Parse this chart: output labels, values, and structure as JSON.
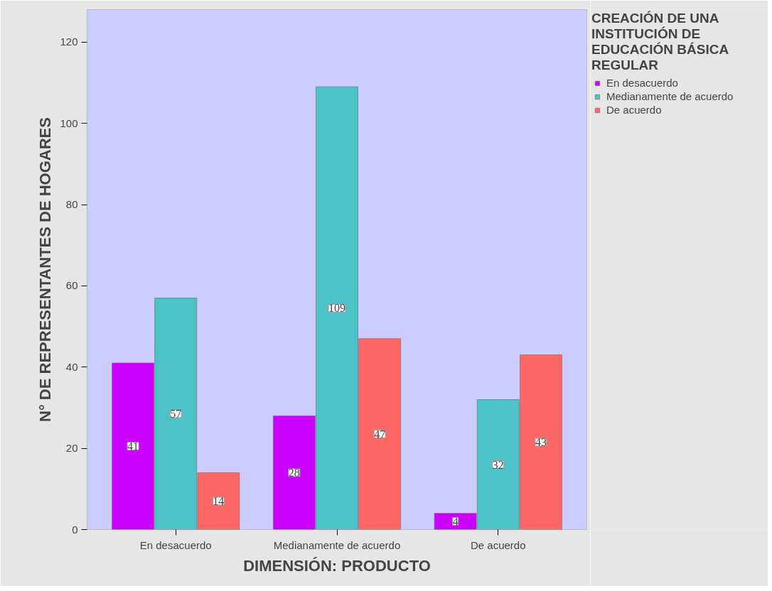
{
  "chart_data": {
    "type": "bar",
    "xlabel": "DIMENSIÓN: PRODUCTO",
    "ylabel": "N° DE REPRESENTANTES DE HOGARES",
    "legend_title": "CREACIÓN DE UNA INSTITUCIÓN DE EDUCACIÓN BÁSICA REGULAR",
    "categories": [
      "En desacuerdo",
      "Medianamente de acuerdo",
      "De acuerdo"
    ],
    "series": [
      {
        "name": "En desacuerdo",
        "color": "#cc00ff",
        "values": [
          41,
          28,
          4
        ]
      },
      {
        "name": "Medianamente de acuerdo",
        "color": "#4bc3c8",
        "values": [
          57,
          109,
          32
        ]
      },
      {
        "name": "De acuerdo",
        "color": "#ff6666",
        "values": [
          14,
          47,
          43
        ]
      }
    ],
    "ylim": [
      0,
      128
    ],
    "yticks": [
      0,
      20,
      40,
      60,
      80,
      100,
      120
    ],
    "data_labels": true,
    "grid": false,
    "legend": "right"
  }
}
